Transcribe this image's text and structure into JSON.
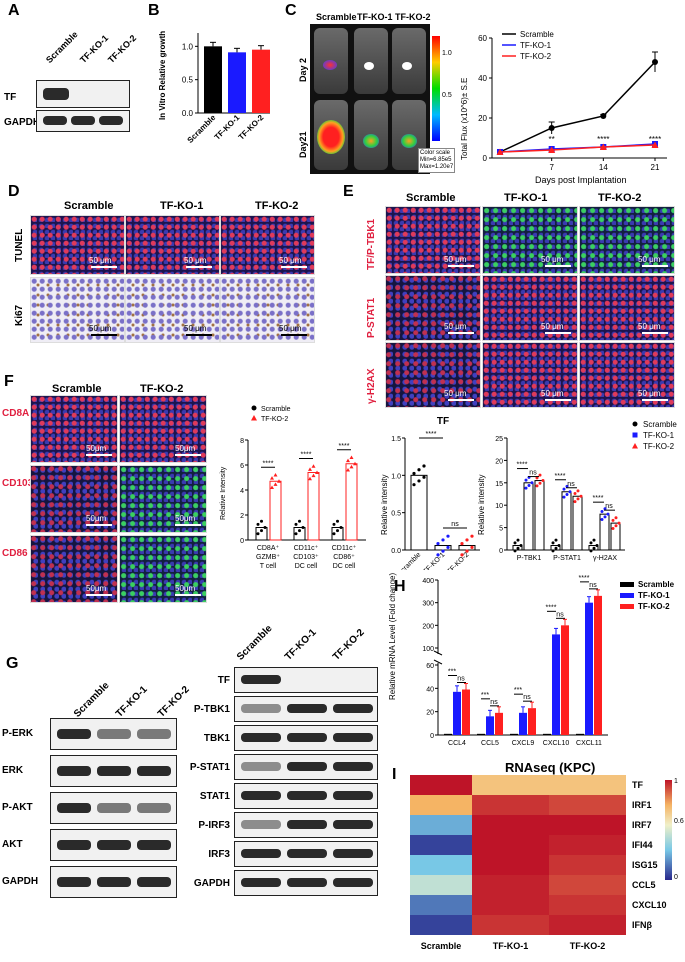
{
  "panels": {
    "A": {
      "label": "A",
      "groups": [
        "Scramble",
        "TF-KO-1",
        "TF-KO-2"
      ],
      "rows": [
        "TF",
        "GAPDH"
      ]
    },
    "B": {
      "label": "B",
      "ylabel": "In Vitro Relative growth",
      "ticks": [
        "0.0",
        "0.5",
        "1.0"
      ],
      "chart_data": {
        "type": "bar",
        "categories": [
          "Scramble",
          "TF-KO-1",
          "TF-KO-2"
        ],
        "values": [
          1.0,
          0.91,
          0.95
        ],
        "ylim": [
          0,
          1.2
        ],
        "colors": [
          "#000000",
          "#1a1aff",
          "#ff2020"
        ]
      }
    },
    "C": {
      "label": "C",
      "groups": [
        "Scramble",
        "TF-KO-1",
        "TF-KO-2"
      ],
      "days": [
        "Day 2",
        "Day21"
      ],
      "colorscale": {
        "ticks": [
          "1.0",
          "0.5"
        ],
        "caption1": "Color scale",
        "caption2": "Min=6.85e5",
        "caption3": "Max=1.20e7"
      },
      "ylabel": "Total Flux (x10^6)± S.E",
      "xlabel": "Days post Implantation",
      "chart_data": {
        "type": "line",
        "x": [
          0,
          7,
          14,
          21
        ],
        "xticks": [
          "7",
          "14",
          "21"
        ],
        "yticks": [
          "0",
          "20",
          "40",
          "60"
        ],
        "ylim": [
          0,
          60
        ],
        "series": [
          {
            "name": "Scramble",
            "values": [
              3,
              15,
              21,
              48
            ],
            "color": "#000000"
          },
          {
            "name": "TF-KO-1",
            "values": [
              3,
              4.5,
              5.5,
              7
            ],
            "color": "#1a1aff"
          },
          {
            "name": "TF-KO-2",
            "values": [
              3,
              4,
              5.5,
              6.5
            ],
            "color": "#ff2020"
          }
        ],
        "annotations": [
          "**",
          "****",
          "****"
        ]
      }
    },
    "D": {
      "label": "D",
      "groups": [
        "Scramble",
        "TF-KO-1",
        "TF-KO-2"
      ],
      "rows": [
        "TUNEL",
        "Ki67"
      ],
      "scalebar": "50 μm"
    },
    "E": {
      "label": "E",
      "groups": [
        "Scramble",
        "TF-KO-1",
        "TF-KO-2"
      ],
      "rows": [
        "TF/P-TBK1",
        "P-STAT1",
        "γ-H2AX"
      ],
      "scalebar": "50 μm",
      "left_title": "TF",
      "ylabel": "Relative intensity",
      "sig": "****",
      "ns": "ns",
      "chart_left": {
        "type": "bar",
        "categories": [
          "Scramble",
          "TF-KO-1",
          "TF-KO-2"
        ],
        "values": [
          1.0,
          0.06,
          0.06
        ],
        "ylim": [
          0,
          1.5
        ],
        "yticks": [
          "0.0",
          "0.5",
          "1.0",
          "1.5"
        ]
      },
      "chart_right": {
        "type": "bar",
        "categories": [
          "P-TBK1",
          "P-STAT1",
          "γ-H2AX"
        ],
        "yticks": [
          "0",
          "5",
          "10",
          "15",
          "20",
          "25"
        ],
        "ylim": [
          0,
          25
        ],
        "series": [
          {
            "name": "Scramble",
            "values": [
              1,
              1,
              1
            ],
            "color": "#000000"
          },
          {
            "name": "TF-KO-1",
            "values": [
              15,
              13,
              8
            ],
            "color": "#1a1aff"
          },
          {
            "name": "TF-KO-2",
            "values": [
              15.5,
              12,
              6
            ],
            "color": "#ff2020"
          }
        ]
      }
    },
    "F": {
      "label": "F",
      "groups": [
        "Scramble",
        "TF-KO-2"
      ],
      "rows": [
        "CD8A\n/GZMB",
        "CD103\n/CD11c",
        "CD86\n/CD11c"
      ],
      "scalebar": "50μm",
      "ylabel": "Relative Intensity",
      "yticks": [
        "0",
        "2",
        "4",
        "6",
        "8"
      ],
      "chart_data": {
        "type": "bar",
        "categories": [
          "CD8A+ GZMB+ T cell",
          "CD11c+ CD103+ DC cell",
          "CD11c+ CD86+ DC cell"
        ],
        "ylim": [
          0,
          8
        ],
        "series": [
          {
            "name": "Scramble",
            "values": [
              1,
              1,
              1
            ],
            "color": "#000000"
          },
          {
            "name": "TF-KO-2",
            "values": [
              4.7,
              5.4,
              6.1
            ],
            "color": "#ff2020"
          }
        ]
      },
      "cat_lines": [
        [
          "CD8A⁺",
          "GZMB⁺",
          "T cell"
        ],
        [
          "CD11c⁺",
          "CD103⁺",
          "DC cell"
        ],
        [
          "CD11c⁺",
          "CD86⁺",
          "DC cell"
        ]
      ],
      "sig": "****"
    },
    "G": {
      "label": "G",
      "left_groups": [
        "Scramble",
        "TF-KO-1",
        "TF-KO-2"
      ],
      "left_rows": [
        "P-ERK",
        "ERK",
        "P-AKT",
        "AKT",
        "GAPDH"
      ],
      "right_groups": [
        "Scramble",
        "TF-KO-1",
        "TF-KO-2"
      ],
      "right_rows": [
        "TF",
        "P-TBK1",
        "TBK1",
        "P-STAT1",
        "STAT1",
        "P-IRF3",
        "IRF3",
        "GAPDH"
      ]
    },
    "H": {
      "label": "H",
      "ylabel": "Relative mRNA Level (Fold change)",
      "yticks_low": [
        "0",
        "20",
        "40",
        "60"
      ],
      "yticks_high": [
        "100",
        "200",
        "300",
        "400"
      ],
      "chart_data": {
        "type": "bar",
        "categories": [
          "CCL4",
          "CCL5",
          "CXCL9",
          "CXCL10",
          "CXCL11"
        ],
        "series": [
          {
            "name": "Scramble",
            "values": [
              1,
              1,
              1,
              1,
              1
            ],
            "color": "#000000"
          },
          {
            "name": "TF-KO-1",
            "values": [
              37,
              16,
              19,
              160,
              300
            ],
            "color": "#1a1aff"
          },
          {
            "name": "TF-KO-2",
            "values": [
              39,
              19,
              23,
              200,
              330
            ],
            "color": "#ff2020"
          }
        ]
      },
      "sigs": [
        "***",
        "***",
        "***",
        "****",
        "****"
      ],
      "ns": "ns"
    },
    "I": {
      "label": "I",
      "title": "RNAseq (KPC)",
      "cols": [
        "Scramble",
        "TF-KO-1",
        "TF-KO-2"
      ],
      "genes": [
        "TF",
        "IRF1",
        "IRF7",
        "IFI44",
        "ISG15",
        "CCL5",
        "CXCL10",
        "IFNβ"
      ],
      "legend_ticks": [
        "1",
        "0.6",
        "0"
      ],
      "chart_data": {
        "type": "heatmap",
        "values": [
          [
            1.0,
            0.7,
            0.7
          ],
          [
            0.75,
            0.95,
            0.92
          ],
          [
            0.25,
            1.0,
            1.0
          ],
          [
            0.05,
            1.0,
            0.98
          ],
          [
            0.3,
            1.0,
            0.95
          ],
          [
            0.45,
            0.98,
            0.92
          ],
          [
            0.15,
            0.98,
            0.95
          ],
          [
            0.05,
            0.95,
            0.98
          ]
        ]
      }
    }
  }
}
